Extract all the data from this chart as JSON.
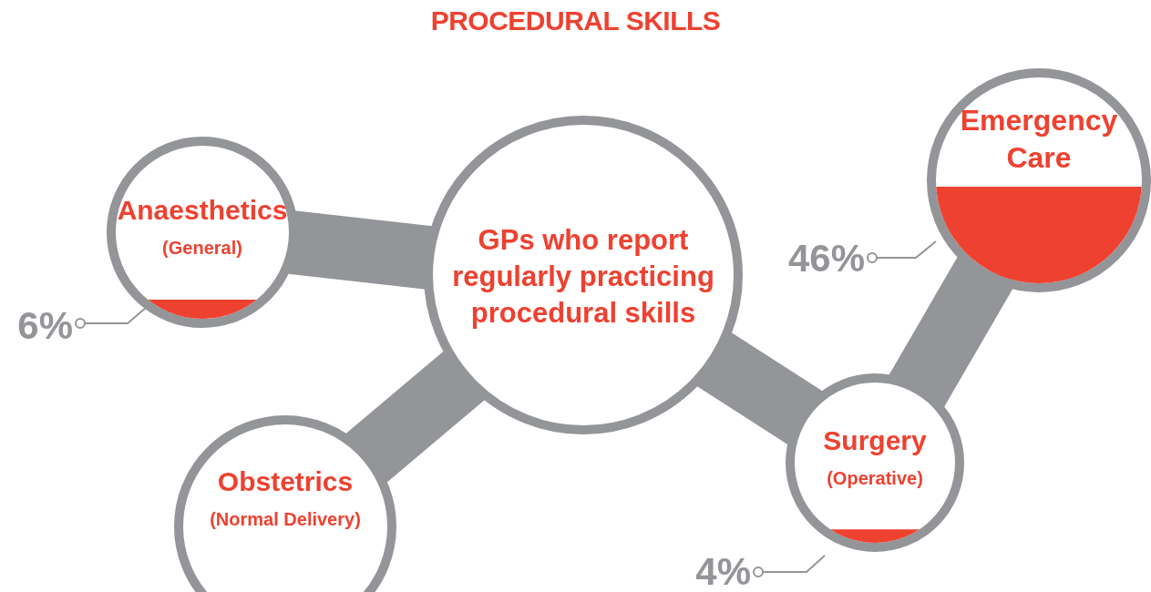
{
  "chart_data": {
    "type": "other",
    "title": "PROCEDURAL SKILLS",
    "categories": [
      "Anaesthetics\n(General)",
      "Emergency\nCare",
      "Surgery\n(Operative)",
      "Obstetrics\n(Normal Delivery)"
    ],
    "values": [
      6,
      46,
      4,
      null
    ],
    "value_labels": [
      "6%",
      "46%",
      "4%",
      null
    ],
    "color": "#ee4130",
    "annotations": [
      "GPs who report regularly practicing procedural skills"
    ]
  }
}
